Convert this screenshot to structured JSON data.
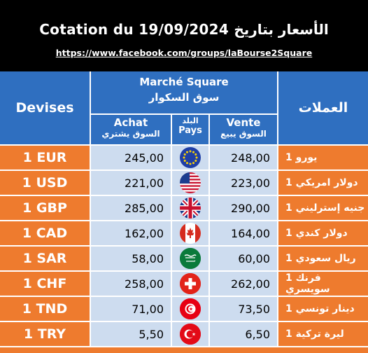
{
  "header": {
    "title": "Cotation du 19/09/2024 الأسعار بتاريخ",
    "url": "https://www.facebook.com/groups/laBourse2Square"
  },
  "table": {
    "devises_label": "Devises",
    "arabic_label": "العملات",
    "market_fr": "Marché Square",
    "market_ar": "سوق السكوار",
    "achat_fr": "Achat",
    "achat_ar": "السوق يشتري",
    "pays_ar": "البلد",
    "pays_fr": "Pays",
    "vente_fr": "Vente",
    "vente_ar": "السوق يبيع"
  },
  "rows": [
    {
      "code": "1 EUR",
      "achat": "245,00",
      "vente": "248,00",
      "ar": "1 يورو",
      "flag": "eu-flag-icon"
    },
    {
      "code": "1 USD",
      "achat": "221,00",
      "vente": "223,00",
      "ar": "1 دولار امريكي",
      "flag": "us-flag-icon"
    },
    {
      "code": "1 GBP",
      "achat": "285,00",
      "vente": "290,00",
      "ar": "1 جنيه إسترليني",
      "flag": "uk-flag-icon"
    },
    {
      "code": "1 CAD",
      "achat": "162,00",
      "vente": "164,00",
      "ar": "1 دولار كندي",
      "flag": "canada-flag-icon"
    },
    {
      "code": "1 SAR",
      "achat": "58,00",
      "vente": "60,00",
      "ar": "1 ريال سعودي",
      "flag": "saudi-flag-icon"
    },
    {
      "code": "1 CHF",
      "achat": "258,00",
      "vente": "262,00",
      "ar": "1 فرنك سويسري",
      "flag": "swiss-flag-icon"
    },
    {
      "code": "1 TND",
      "achat": "71,00",
      "vente": "73,50",
      "ar": "1 دينار تونسي",
      "flag": "tunisia-flag-icon"
    },
    {
      "code": "1 TRY",
      "achat": "5,50",
      "vente": "6,50",
      "ar": "1 ليرة تركية",
      "flag": "turkey-flag-icon"
    }
  ],
  "colors": {
    "header_bg": "#000000",
    "table_header_bg": "#2f6fc0",
    "row_label_bg": "#ee7b2e",
    "row_value_bg": "#cddcef"
  }
}
